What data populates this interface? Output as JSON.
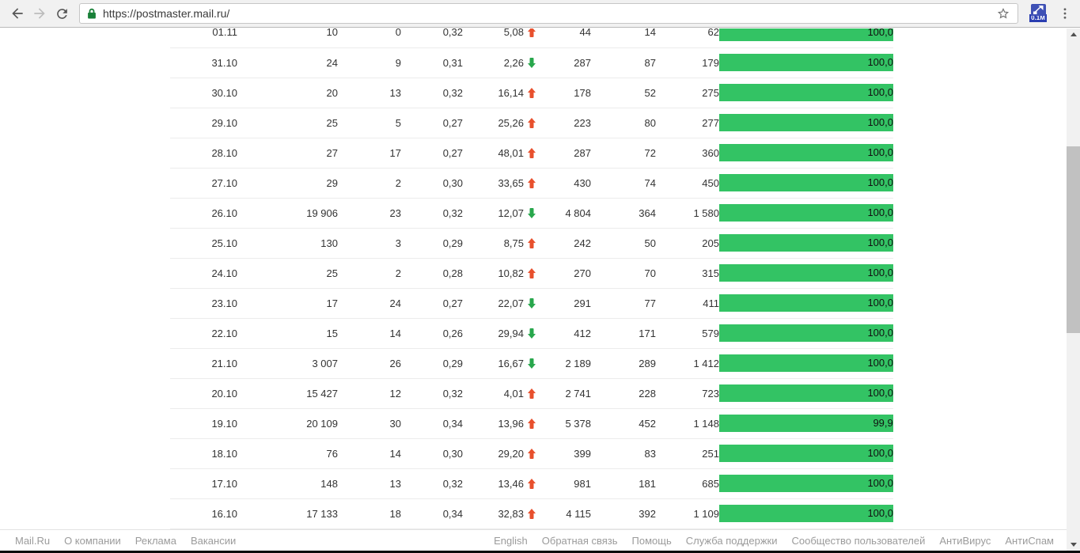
{
  "browser": {
    "url": "https://postmaster.mail.ru/",
    "extension_badge": "0.1M"
  },
  "colors": {
    "bar_green": "#33c364",
    "trend_up": "#e8502d",
    "trend_down": "#28a74c",
    "lock_green": "#188038",
    "extension_blue": "#3f51b5"
  },
  "table": {
    "rows": [
      {
        "date": "01.11",
        "v": [
          "10",
          "0",
          "0,32"
        ],
        "trend": {
          "value": "5,08",
          "dir": "up"
        },
        "v2": [
          "44",
          "14",
          "62"
        ],
        "bar": {
          "label": "100,0",
          "pct": 100
        }
      },
      {
        "date": "31.10",
        "v": [
          "24",
          "9",
          "0,31"
        ],
        "trend": {
          "value": "2,26",
          "dir": "down"
        },
        "v2": [
          "287",
          "87",
          "179"
        ],
        "bar": {
          "label": "100,0",
          "pct": 100
        }
      },
      {
        "date": "30.10",
        "v": [
          "20",
          "13",
          "0,32"
        ],
        "trend": {
          "value": "16,14",
          "dir": "up"
        },
        "v2": [
          "178",
          "52",
          "275"
        ],
        "bar": {
          "label": "100,0",
          "pct": 100
        }
      },
      {
        "date": "29.10",
        "v": [
          "25",
          "5",
          "0,27"
        ],
        "trend": {
          "value": "25,26",
          "dir": "up"
        },
        "v2": [
          "223",
          "80",
          "277"
        ],
        "bar": {
          "label": "100,0",
          "pct": 100
        }
      },
      {
        "date": "28.10",
        "v": [
          "27",
          "17",
          "0,27"
        ],
        "trend": {
          "value": "48,01",
          "dir": "up"
        },
        "v2": [
          "287",
          "72",
          "360"
        ],
        "bar": {
          "label": "100,0",
          "pct": 100
        }
      },
      {
        "date": "27.10",
        "v": [
          "29",
          "2",
          "0,30"
        ],
        "trend": {
          "value": "33,65",
          "dir": "up"
        },
        "v2": [
          "430",
          "74",
          "450"
        ],
        "bar": {
          "label": "100,0",
          "pct": 100
        }
      },
      {
        "date": "26.10",
        "v": [
          "19 906",
          "23",
          "0,32"
        ],
        "trend": {
          "value": "12,07",
          "dir": "down"
        },
        "v2": [
          "4 804",
          "364",
          "1 580"
        ],
        "bar": {
          "label": "100,0",
          "pct": 100
        }
      },
      {
        "date": "25.10",
        "v": [
          "130",
          "3",
          "0,29"
        ],
        "trend": {
          "value": "8,75",
          "dir": "up"
        },
        "v2": [
          "242",
          "50",
          "205"
        ],
        "bar": {
          "label": "100,0",
          "pct": 100
        }
      },
      {
        "date": "24.10",
        "v": [
          "25",
          "2",
          "0,28"
        ],
        "trend": {
          "value": "10,82",
          "dir": "up"
        },
        "v2": [
          "270",
          "70",
          "315"
        ],
        "bar": {
          "label": "100,0",
          "pct": 100
        }
      },
      {
        "date": "23.10",
        "v": [
          "17",
          "24",
          "0,27"
        ],
        "trend": {
          "value": "22,07",
          "dir": "down"
        },
        "v2": [
          "291",
          "77",
          "411"
        ],
        "bar": {
          "label": "100,0",
          "pct": 100
        }
      },
      {
        "date": "22.10",
        "v": [
          "15",
          "14",
          "0,26"
        ],
        "trend": {
          "value": "29,94",
          "dir": "down"
        },
        "v2": [
          "412",
          "171",
          "579"
        ],
        "bar": {
          "label": "100,0",
          "pct": 100
        }
      },
      {
        "date": "21.10",
        "v": [
          "3 007",
          "26",
          "0,29"
        ],
        "trend": {
          "value": "16,67",
          "dir": "down"
        },
        "v2": [
          "2 189",
          "289",
          "1 412"
        ],
        "bar": {
          "label": "100,0",
          "pct": 100
        }
      },
      {
        "date": "20.10",
        "v": [
          "15 427",
          "12",
          "0,32"
        ],
        "trend": {
          "value": "4,01",
          "dir": "up"
        },
        "v2": [
          "2 741",
          "228",
          "723"
        ],
        "bar": {
          "label": "100,0",
          "pct": 100
        }
      },
      {
        "date": "19.10",
        "v": [
          "20 109",
          "30",
          "0,34"
        ],
        "trend": {
          "value": "13,96",
          "dir": "up"
        },
        "v2": [
          "5 378",
          "452",
          "1 148"
        ],
        "bar": {
          "label": "99,9",
          "pct": 99.9
        }
      },
      {
        "date": "18.10",
        "v": [
          "76",
          "14",
          "0,30"
        ],
        "trend": {
          "value": "29,20",
          "dir": "up"
        },
        "v2": [
          "399",
          "83",
          "251"
        ],
        "bar": {
          "label": "100,0",
          "pct": 100
        }
      },
      {
        "date": "17.10",
        "v": [
          "148",
          "13",
          "0,32"
        ],
        "trend": {
          "value": "13,46",
          "dir": "up"
        },
        "v2": [
          "981",
          "181",
          "685"
        ],
        "bar": {
          "label": "100,0",
          "pct": 100
        }
      },
      {
        "date": "16.10",
        "v": [
          "17 133",
          "18",
          "0,34"
        ],
        "trend": {
          "value": "32,83",
          "dir": "up"
        },
        "v2": [
          "4 115",
          "392",
          "1 109"
        ],
        "bar": {
          "label": "100,0",
          "pct": 100
        }
      }
    ]
  },
  "footer": {
    "left": [
      "Mail.Ru",
      "О компании",
      "Реклама",
      "Вакансии"
    ],
    "right": [
      "English",
      "Обратная связь",
      "Помощь",
      "Служба поддержки",
      "Сообщество пользователей",
      "АнтиВирус",
      "АнтиСпам"
    ]
  }
}
